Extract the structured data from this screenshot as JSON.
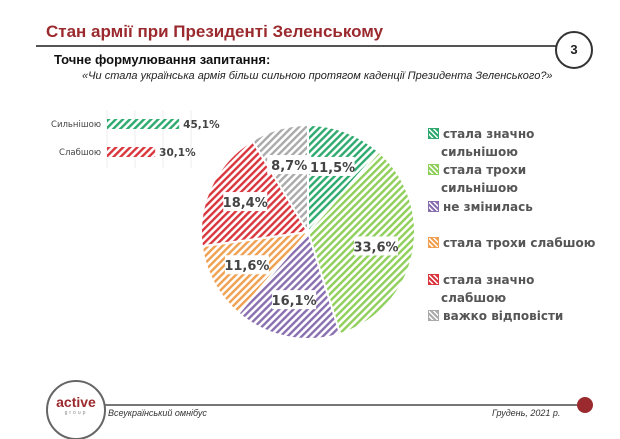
{
  "header": {
    "title": "Стан армії при Президенті Зеленському",
    "page_number": "3",
    "subtitle": "Точне формулювання запитання:",
    "question": "«Чи стала українська армія більш сильною протягом каденції Президента Зеленського?»"
  },
  "footer": {
    "logo_text": "active",
    "logo_sub": "group",
    "left": "Всеукраїнський омнібус",
    "right": "Грудень, 2021 р."
  },
  "chart_data": [
    {
      "type": "pie",
      "slices": [
        {
          "label": "стала значно сильнішою",
          "value": 11.5,
          "display": "11,5%",
          "color": "#2eaa6e"
        },
        {
          "label": "стала трохи сильнішою",
          "value": 33.6,
          "display": "33,6%",
          "color": "#8fcf5a"
        },
        {
          "label": "не змінилась",
          "value": 16.1,
          "display": "16,1%",
          "color": "#8a6fb0"
        },
        {
          "label": "стала трохи слабшою",
          "value": 11.6,
          "display": "11,6%",
          "color": "#f0a050"
        },
        {
          "label": "стала значно слабшою",
          "value": 18.4,
          "display": "18,4%",
          "color": "#d9363e"
        },
        {
          "label": "важко відповісти",
          "value": 8.7,
          "display": "8,7%",
          "color": "#aaaaaa"
        }
      ],
      "legend_placement": "right",
      "start": "top",
      "direction": "clockwise",
      "pattern": "hatched"
    },
    {
      "type": "bar",
      "orientation": "horizontal",
      "categories": [
        "Сильнішою",
        "Слабшою"
      ],
      "values": [
        45.1,
        30.1
      ],
      "labels": [
        "45,1%",
        "30,1%"
      ],
      "colors": [
        "#2eaa6e",
        "#d9363e"
      ]
    }
  ]
}
